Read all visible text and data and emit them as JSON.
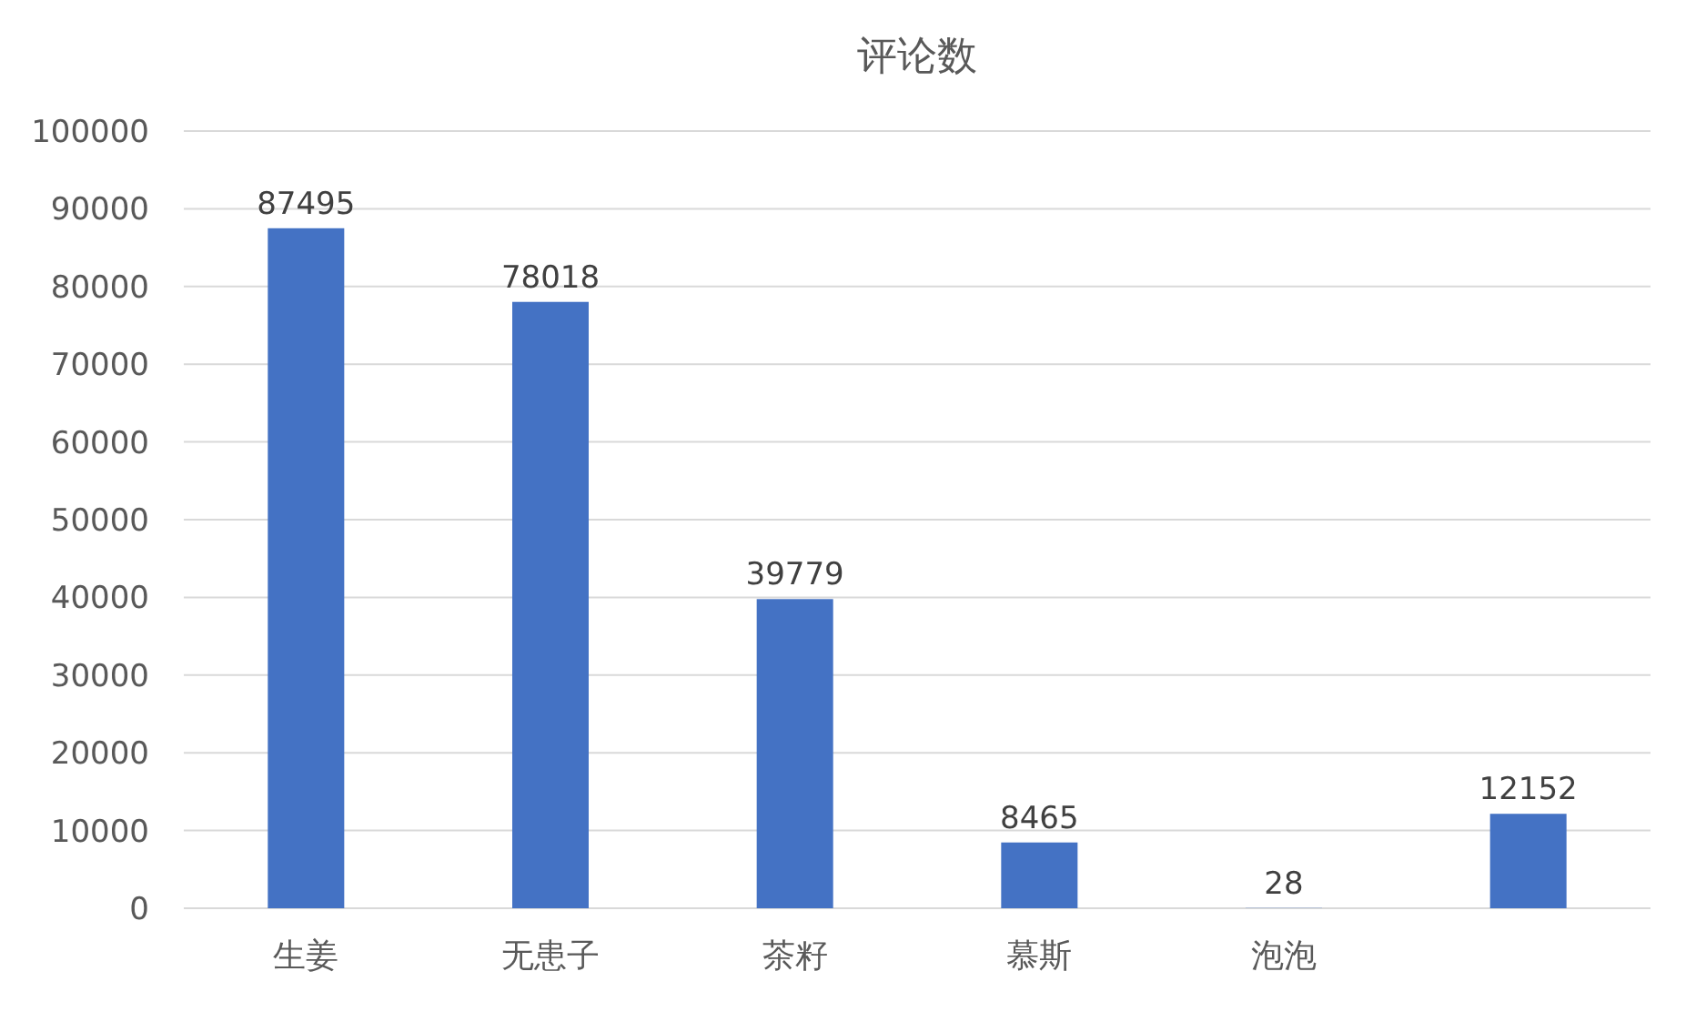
{
  "chart_data": {
    "type": "bar",
    "title": "评论数",
    "categories": [
      "生姜",
      "无患子",
      "茶籽",
      "慕斯",
      "泡泡",
      null
    ],
    "values": [
      87495,
      78018,
      39779,
      8465,
      28,
      12152
    ],
    "color": "#4472c4",
    "ylim": [
      0,
      100000
    ],
    "yticks": [
      0,
      10000,
      20000,
      30000,
      40000,
      50000,
      60000,
      70000,
      80000,
      90000,
      100000
    ],
    "grid": "y",
    "data_labels": true
  }
}
